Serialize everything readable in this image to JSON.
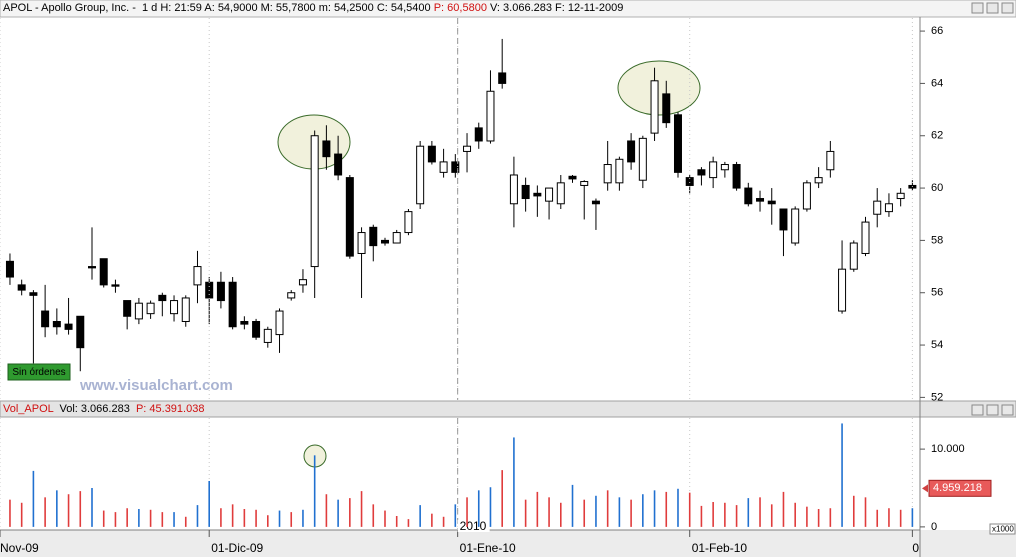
{
  "chart_data": [
    {
      "type": "candlestick",
      "title": "APOL - Apollo Group, Inc. -  1 d H: 21:59 A: 54,9000 M: 55,7800 m: 54,2500 C: 54,5400",
      "title_highlight": "P: 60,5800",
      "title_tail": "V: 3.066.283 F: 12-11-2009",
      "watermark": "www.visualchart.com",
      "annotation": "Sin órdenes",
      "categories": [
        null,
        null,
        null,
        null,
        null,
        null,
        null,
        null,
        null,
        null,
        null,
        null,
        null,
        null,
        null,
        null,
        null,
        null,
        null,
        null,
        null,
        null,
        null,
        null,
        null,
        null,
        null,
        null,
        null,
        null,
        null,
        null,
        null,
        null,
        null,
        null,
        null,
        null,
        null,
        null,
        null,
        null,
        null,
        null,
        null,
        null,
        null,
        null,
        null,
        null,
        null,
        null,
        null,
        null,
        null,
        null,
        null,
        null,
        null,
        null,
        null,
        null,
        null,
        null,
        null,
        null,
        null,
        null,
        null,
        null,
        null,
        null,
        null,
        null,
        null,
        null,
        null,
        null
      ],
      "open": [
        57.2,
        56.3,
        56.0,
        55.3,
        54.9,
        54.8,
        55.1,
        57.0,
        57.3,
        56.3,
        55.7,
        55.0,
        55.2,
        55.9,
        55.2,
        54.9,
        56.3,
        56.4,
        56.4,
        56.4,
        54.9,
        54.9,
        54.1,
        54.4,
        55.8,
        56.3,
        57.0,
        61.8,
        61.3,
        60.4,
        57.5,
        58.5,
        58.0,
        57.9,
        58.3,
        59.4,
        61.6,
        60.6,
        61.0,
        61.4,
        62.3,
        61.8,
        64.4,
        59.4,
        60.1,
        59.8,
        59.5,
        59.4,
        60.45,
        60.1,
        59.5,
        60.2,
        60.2,
        61.8,
        60.3,
        62.1,
        63.6,
        62.8,
        60.4,
        60.7,
        60.4,
        60.7,
        60.9,
        60.0,
        59.6,
        59.5,
        59.2,
        57.9,
        59.2,
        60.2,
        60.7,
        55.3,
        56.9,
        57.5,
        59.0,
        59.1,
        59.6,
        60.1
      ],
      "high": [
        57.5,
        56.5,
        56.1,
        56.3,
        55.4,
        55.8,
        55.1,
        58.5,
        57.3,
        56.5,
        55.7,
        55.8,
        55.7,
        56.0,
        55.9,
        55.9,
        57.6,
        56.6,
        56.8,
        56.6,
        55.1,
        55.0,
        54.7,
        55.4,
        56.1,
        56.9,
        62.2,
        62.4,
        62.0,
        60.5,
        58.5,
        58.6,
        58.1,
        58.4,
        59.2,
        61.8,
        61.8,
        61.5,
        61.3,
        62.1,
        62.5,
        64.5,
        65.7,
        61.2,
        60.4,
        60.1,
        60.0,
        60.5,
        60.5,
        60.3,
        59.6,
        61.8,
        61.2,
        62.1,
        62.0,
        64.6,
        64.1,
        62.9,
        60.5,
        60.8,
        61.2,
        61.0,
        61.0,
        60.2,
        59.9,
        60.0,
        59.2,
        59.3,
        60.3,
        60.8,
        61.8,
        58.0,
        58.0,
        58.9,
        60.0,
        59.8,
        60.0,
        60.3
      ],
      "low": [
        56.3,
        55.9,
        53.3,
        54.3,
        54.4,
        54.4,
        53.0,
        56.5,
        56.2,
        56.0,
        54.6,
        54.8,
        55.0,
        55.1,
        54.9,
        54.7,
        55.6,
        54.8,
        55.4,
        54.6,
        54.6,
        54.2,
        53.9,
        53.7,
        55.7,
        56.0,
        55.8,
        60.7,
        60.3,
        57.3,
        55.8,
        57.2,
        57.8,
        57.9,
        58.2,
        59.2,
        60.9,
        60.4,
        60.4,
        60.6,
        61.5,
        61.7,
        63.8,
        58.5,
        59.1,
        58.9,
        58.8,
        59.2,
        60.2,
        58.8,
        58.4,
        59.9,
        59.9,
        60.7,
        60.0,
        61.8,
        62.3,
        60.4,
        59.8,
        60.1,
        60.0,
        60.4,
        59.9,
        59.3,
        59.1,
        58.6,
        57.4,
        57.8,
        59.1,
        60.0,
        60.4,
        55.2,
        56.8,
        57.4,
        58.5,
        58.9,
        59.3,
        59.9
      ],
      "close": [
        56.6,
        56.1,
        55.9,
        54.7,
        54.7,
        54.6,
        53.9,
        56.95,
        56.3,
        56.25,
        55.1,
        55.6,
        55.6,
        55.7,
        55.7,
        55.8,
        57.0,
        55.8,
        55.7,
        54.7,
        54.8,
        54.3,
        54.6,
        55.3,
        56.0,
        56.5,
        62.0,
        61.2,
        60.5,
        57.4,
        58.3,
        57.8,
        57.9,
        58.3,
        59.1,
        61.6,
        61.0,
        61.0,
        60.6,
        61.6,
        61.8,
        63.7,
        64.0,
        60.5,
        59.6,
        59.7,
        60.0,
        60.2,
        60.35,
        60.25,
        59.4,
        60.9,
        61.1,
        61.0,
        61.9,
        64.1,
        62.5,
        60.6,
        60.1,
        60.5,
        61.0,
        60.9,
        60.0,
        59.4,
        59.5,
        59.4,
        58.4,
        59.2,
        60.2,
        60.4,
        61.4,
        56.9,
        57.9,
        58.7,
        59.5,
        59.4,
        59.8,
        60.0
      ],
      "up_color": "#ffffff",
      "down_color": "#000000",
      "xlim": [
        -0.85,
        77.65
      ],
      "ylim": [
        51.9,
        66.5
      ],
      "yticks": [
        52,
        54,
        56,
        58,
        60,
        62,
        64,
        66
      ]
    },
    {
      "type": "bar",
      "title": "Vol_APOL",
      "subtitle": "Vol: 3.066.283",
      "title_highlight": "P: 45.391.038",
      "values": [
        3500,
        3100,
        7200,
        3800,
        4700,
        4200,
        4600,
        5000,
        2100,
        1900,
        2400,
        2300,
        2200,
        1900,
        1900,
        1300,
        2800,
        5900,
        2400,
        2900,
        2300,
        2200,
        1500,
        2100,
        1900,
        2200,
        9200,
        4200,
        3500,
        3700,
        4600,
        2900,
        2100,
        1400,
        1000,
        2800,
        1700,
        1300,
        2900,
        3800,
        4700,
        5100,
        7300,
        11500,
        3500,
        4500,
        3800,
        3100,
        5400,
        3500,
        4000,
        4700,
        3800,
        3500,
        4200,
        4700,
        4500,
        4900,
        4400,
        2700,
        3200,
        3100,
        2800,
        3700,
        3800,
        2900,
        4500,
        3100,
        2600,
        2300,
        2400,
        13300,
        4000,
        3800,
        2200,
        2400,
        2200,
        2400
      ],
      "colors": [
        "#e03c3c",
        "#e03c3c",
        "#2070d0",
        "#e03c3c",
        "#2070d0",
        "#e03c3c",
        "#e03c3c",
        "#2070d0",
        "#e03c3c",
        "#e03c3c",
        "#e03c3c",
        "#2070d0",
        "#e03c3c",
        "#e03c3c",
        "#2070d0",
        "#e03c3c",
        "#2070d0",
        "#2070d0",
        "#e03c3c",
        "#e03c3c",
        "#e03c3c",
        "#e03c3c",
        "#e03c3c",
        "#2070d0",
        "#e03c3c",
        "#2070d0",
        "#2070d0",
        "#e03c3c",
        "#2070d0",
        "#e03c3c",
        "#e03c3c",
        "#e03c3c",
        "#e03c3c",
        "#e03c3c",
        "#e03c3c",
        "#2070d0",
        "#e03c3c",
        "#e03c3c",
        "#2070d0",
        "#e03c3c",
        "#2070d0",
        "#2070d0",
        "#e03c3c",
        "#2070d0",
        "#e03c3c",
        "#e03c3c",
        "#e03c3c",
        "#e03c3c",
        "#2070d0",
        "#e03c3c",
        "#2070d0",
        "#e03c3c",
        "#2070d0",
        "#e03c3c",
        "#2070d0",
        "#2070d0",
        "#e03c3c",
        "#2070d0",
        "#e03c3c",
        "#e03c3c",
        "#e03c3c",
        "#e03c3c",
        "#e03c3c",
        "#2070d0",
        "#e03c3c",
        "#e03c3c",
        "#e03c3c",
        "#e03c3c",
        "#e03c3c",
        "#e03c3c",
        "#e03c3c",
        "#2070d0",
        "#e03c3c",
        "#e03c3c",
        "#e03c3c",
        "#e03c3c",
        "#e03c3c",
        "#2070d0"
      ],
      "last_value": {
        "value": 4959.218,
        "label": "4.959.218"
      },
      "unit_label": "x1000",
      "separator": {
        "value": 38.2,
        "label": "2010"
      },
      "xlim": [
        -0.85,
        77.65
      ],
      "xticks": [
        {
          "value": -0.85,
          "label": "Nov-09"
        },
        {
          "value": 17,
          "label": "01-Dic-09"
        },
        {
          "value": 38.2,
          "label": "01-Ene-10"
        },
        {
          "value": 58,
          "label": "01-Feb-10"
        },
        {
          "value": 77,
          "label": "0"
        }
      ],
      "ylim": [
        -400,
        14000
      ],
      "yticks": [
        0,
        {
          "value": 10000,
          "label": "10.000"
        }
      ]
    }
  ]
}
